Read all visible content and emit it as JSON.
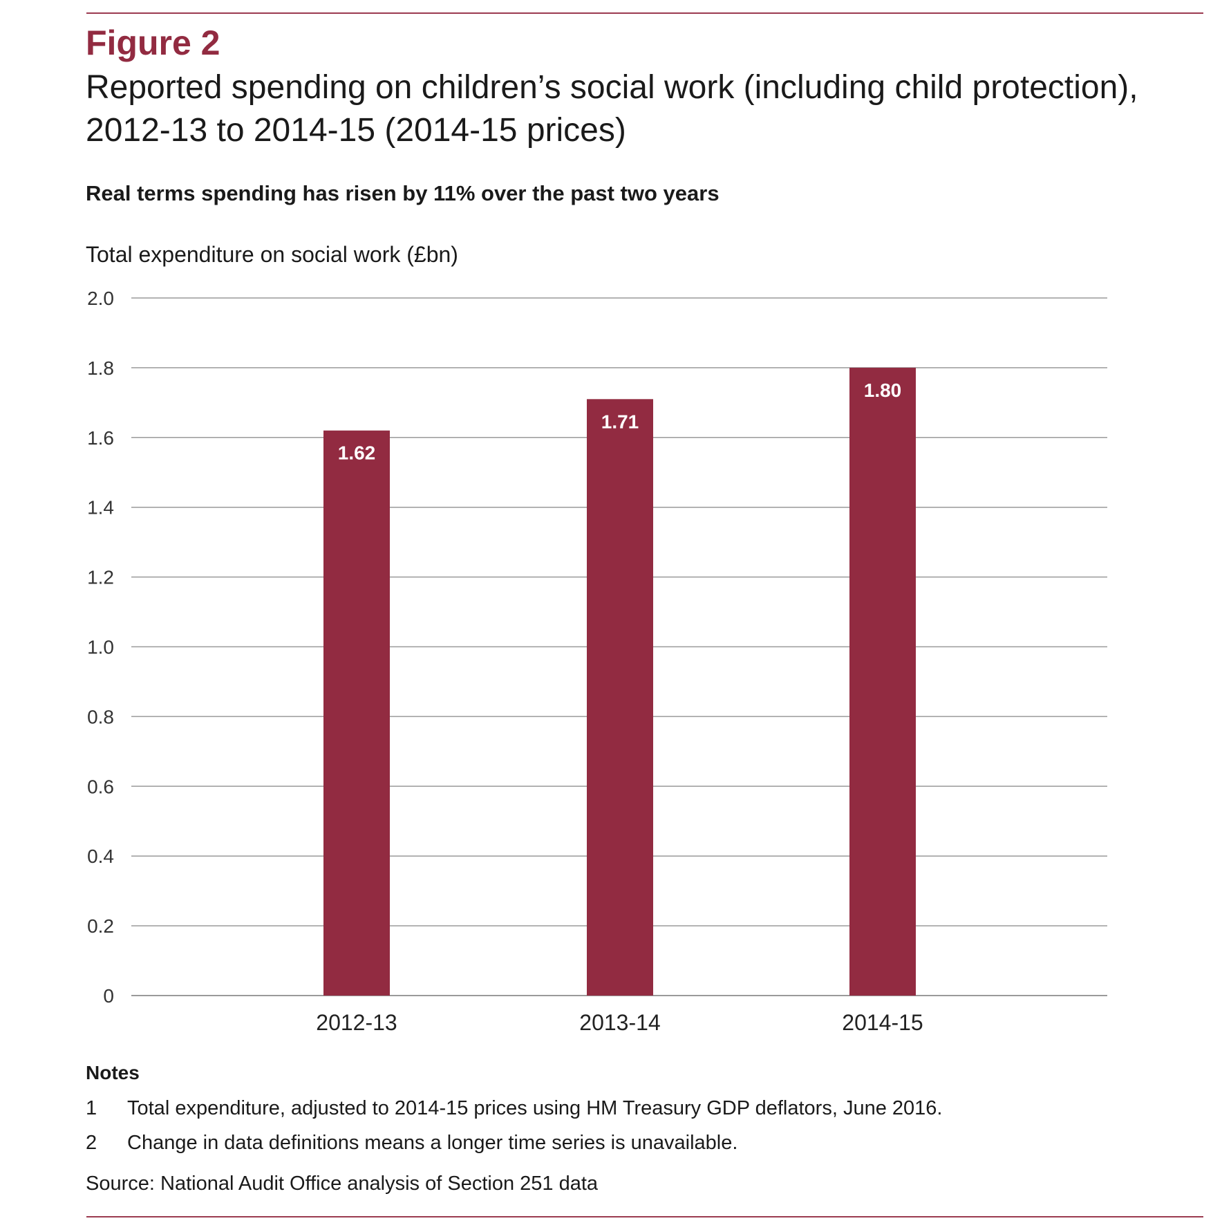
{
  "figure": {
    "label": "Figure 2",
    "title": "Reported spending on children’s social work (including child protection), 2012-13 to 2014-15 (2014-15 prices)",
    "subtitle": "Real terms spending has risen by 11% over the past two years"
  },
  "chart_data": {
    "type": "bar",
    "ylabel": "Total expenditure on social work (£bn)",
    "xlabel": "",
    "categories": [
      "2012-13",
      "2013-14",
      "2014-15"
    ],
    "values": [
      1.62,
      1.71,
      1.8
    ],
    "value_labels": [
      "1.62",
      "1.71",
      "1.80"
    ],
    "ylim": [
      0,
      2.0
    ],
    "yticks": [
      0,
      0.2,
      0.4,
      0.6,
      0.8,
      1.0,
      1.2,
      1.4,
      1.6,
      1.8,
      2.0
    ],
    "ytick_labels": [
      "0",
      "0.2",
      "0.4",
      "0.6",
      "0.8",
      "1.0",
      "1.2",
      "1.4",
      "1.6",
      "1.8",
      "2.0"
    ],
    "grid": true,
    "legend": "none",
    "bar_color": "#922b41",
    "grid_color": "#9a9a9a"
  },
  "notes": {
    "heading": "Notes",
    "items": [
      {
        "num": "1",
        "text": "Total expenditure, adjusted to 2014-15 prices using HM Treasury GDP deflators, June 2016."
      },
      {
        "num": "2",
        "text": "Change in data definitions means a longer time series is unavailable."
      }
    ]
  },
  "source": "Source: National Audit Office analysis of Section 251 data",
  "colors": {
    "accent": "#922b41",
    "rule": "#9b3a4f"
  }
}
